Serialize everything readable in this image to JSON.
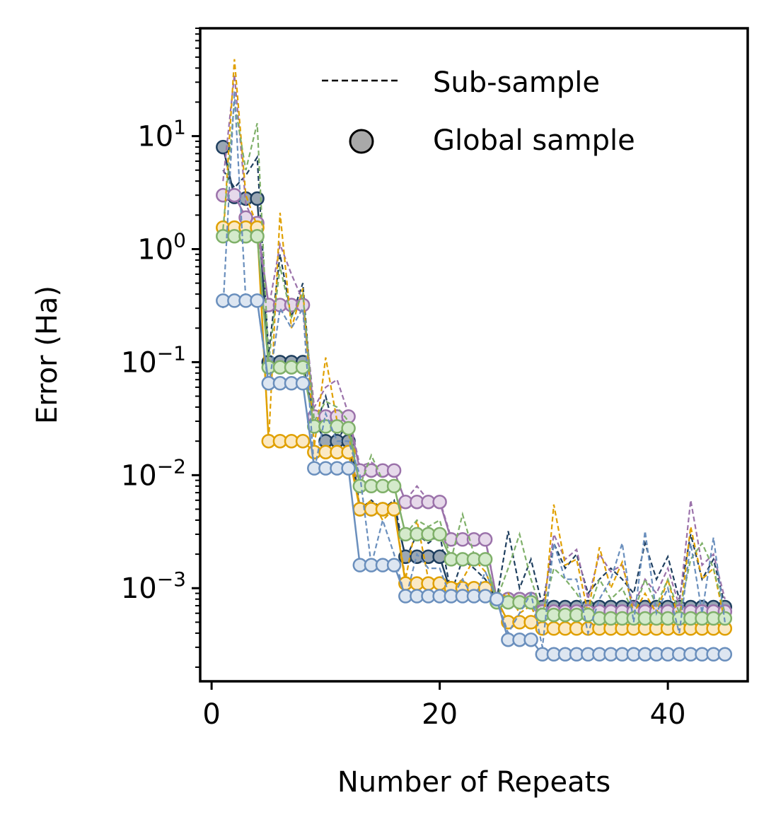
{
  "chart_data": {
    "type": "line",
    "title": "",
    "xlabel": "Number of Repeats",
    "ylabel": "Error (Ha)",
    "yscale": "log",
    "xlim": [
      -1,
      47
    ],
    "ylim": [
      0.00015,
      90
    ],
    "xticks": [
      0,
      20,
      40
    ],
    "xtick_labels": [
      "0",
      "20",
      "40"
    ],
    "yticks": [
      0.001,
      0.01,
      0.1,
      1,
      10
    ],
    "ytick_labels": [
      {
        "base": "10",
        "exp": "−3"
      },
      {
        "base": "10",
        "exp": "−2"
      },
      {
        "base": "10",
        "exp": "−1"
      },
      {
        "base": "10",
        "exp": "0"
      },
      {
        "base": "10",
        "exp": "1"
      }
    ],
    "legend": {
      "position": "top-right",
      "entries": [
        {
          "label": "Sub-sample",
          "style": "dashed-line"
        },
        {
          "label": "Global sample",
          "style": "circle-marker"
        }
      ]
    },
    "x": [
      1,
      2,
      3,
      4,
      5,
      6,
      7,
      8,
      9,
      10,
      11,
      12,
      13,
      14,
      15,
      16,
      17,
      18,
      19,
      20,
      21,
      22,
      23,
      24,
      25,
      26,
      27,
      28,
      29,
      30,
      31,
      32,
      33,
      34,
      35,
      36,
      37,
      38,
      39,
      40,
      41,
      42,
      43,
      44,
      45
    ],
    "series": [
      {
        "name": "navy",
        "line_color": "#1f3f5f",
        "marker_fill": "#9aa7b4",
        "global": [
          8.0,
          2.9,
          2.8,
          2.8,
          0.1,
          0.1,
          0.1,
          0.1,
          0.03,
          0.02,
          0.02,
          0.02,
          0.005,
          0.005,
          0.005,
          0.005,
          0.0019,
          0.0019,
          0.0019,
          0.0019,
          0.0009,
          0.0009,
          0.0009,
          0.0009,
          0.0008,
          0.0008,
          0.0008,
          0.0008,
          0.00068,
          0.00068,
          0.00068,
          0.00068,
          0.00068,
          0.00068,
          0.00068,
          0.00068,
          0.00068,
          0.00068,
          0.00068,
          0.00068,
          0.00068,
          0.00068,
          0.00068,
          0.00068,
          0.00068
        ],
        "sub": [
          5.0,
          3.5,
          4.5,
          6.5,
          0.12,
          0.9,
          0.25,
          0.5,
          0.025,
          0.05,
          0.02,
          0.03,
          0.005,
          0.006,
          0.005,
          0.006,
          0.0018,
          0.003,
          0.0025,
          0.003,
          0.0009,
          0.0018,
          0.0015,
          0.0012,
          0.0008,
          0.0032,
          0.001,
          0.0018,
          0.0007,
          0.0025,
          0.0015,
          0.002,
          0.0009,
          0.0012,
          0.0015,
          0.0012,
          0.0009,
          0.0025,
          0.0012,
          0.0019,
          0.0008,
          0.003,
          0.0012,
          0.0018,
          0.0007
        ]
      },
      {
        "name": "purple",
        "line_color": "#9b72aa",
        "marker_fill": "#e6d9ea",
        "global": [
          3.0,
          3.0,
          1.9,
          1.7,
          0.32,
          0.32,
          0.32,
          0.32,
          0.033,
          0.033,
          0.033,
          0.033,
          0.011,
          0.011,
          0.011,
          0.011,
          0.0058,
          0.0058,
          0.0058,
          0.0058,
          0.0027,
          0.0027,
          0.0027,
          0.0027,
          0.0008,
          0.0008,
          0.0008,
          0.0008,
          0.00062,
          0.00062,
          0.00062,
          0.00062,
          0.00062,
          0.00062,
          0.00062,
          0.00062,
          0.00062,
          0.00062,
          0.00062,
          0.00062,
          0.00062,
          0.00062,
          0.00062,
          0.00062,
          0.00062
        ],
        "sub": [
          4.0,
          35.0,
          2.5,
          1.5,
          0.3,
          1.1,
          0.6,
          0.35,
          0.04,
          0.06,
          0.07,
          0.035,
          0.012,
          0.013,
          0.011,
          0.01,
          0.006,
          0.008,
          0.006,
          0.006,
          0.0028,
          0.003,
          0.0028,
          0.0028,
          0.0008,
          0.0009,
          0.0007,
          0.0009,
          0.0006,
          0.003,
          0.0018,
          0.0022,
          0.0008,
          0.002,
          0.0014,
          0.0016,
          0.0007,
          0.0012,
          0.0009,
          0.0015,
          0.0007,
          0.006,
          0.0016,
          0.002,
          0.0008
        ]
      },
      {
        "name": "orange",
        "line_color": "#e0a000",
        "marker_fill": "#fbe9c4",
        "global": [
          1.55,
          1.55,
          1.55,
          1.55,
          0.02,
          0.02,
          0.02,
          0.02,
          0.016,
          0.016,
          0.016,
          0.016,
          0.005,
          0.005,
          0.005,
          0.005,
          0.0011,
          0.0011,
          0.0011,
          0.0011,
          0.001,
          0.001,
          0.001,
          0.001,
          0.0008,
          0.0005,
          0.0005,
          0.0005,
          0.00044,
          0.00044,
          0.00044,
          0.00044,
          0.00044,
          0.00044,
          0.00044,
          0.00044,
          0.00044,
          0.00044,
          0.00044,
          0.00044,
          0.00044,
          0.00044,
          0.00044,
          0.00044,
          0.00044
        ],
        "sub": [
          1.2,
          48.0,
          3.0,
          1.6,
          0.02,
          2.1,
          0.2,
          0.45,
          0.018,
          0.11,
          0.03,
          0.025,
          0.005,
          0.006,
          0.004,
          0.005,
          0.0012,
          0.004,
          0.0012,
          0.0012,
          0.001,
          0.0012,
          0.0018,
          0.0014,
          0.0008,
          0.0009,
          0.0006,
          0.0007,
          0.0004,
          0.0055,
          0.0016,
          0.0018,
          0.0006,
          0.0023,
          0.001,
          0.0017,
          0.0006,
          0.0009,
          0.0006,
          0.0012,
          0.0005,
          0.0035,
          0.0012,
          0.0015,
          0.0005
        ]
      },
      {
        "name": "green",
        "line_color": "#7fb069",
        "marker_fill": "#d4eacb",
        "global": [
          1.3,
          1.3,
          1.3,
          1.3,
          0.09,
          0.09,
          0.09,
          0.09,
          0.027,
          0.027,
          0.027,
          0.026,
          0.008,
          0.008,
          0.008,
          0.008,
          0.003,
          0.003,
          0.003,
          0.003,
          0.0018,
          0.0018,
          0.0018,
          0.0018,
          0.00075,
          0.00075,
          0.00075,
          0.00075,
          0.00058,
          0.00058,
          0.00058,
          0.00058,
          0.00058,
          0.00054,
          0.00054,
          0.00054,
          0.00054,
          0.00054,
          0.00054,
          0.00054,
          0.00054,
          0.00054,
          0.00054,
          0.00054,
          0.00054
        ],
        "sub": [
          1.5,
          20.0,
          5.0,
          13.0,
          0.1,
          0.7,
          0.25,
          0.4,
          0.03,
          0.045,
          0.04,
          0.03,
          0.008,
          0.015,
          0.009,
          0.008,
          0.003,
          0.004,
          0.0035,
          0.004,
          0.0018,
          0.0045,
          0.002,
          0.0018,
          0.0008,
          0.0015,
          0.003,
          0.0012,
          0.0006,
          0.0015,
          0.0012,
          0.0009,
          0.0006,
          0.0012,
          0.0008,
          0.001,
          0.0006,
          0.0012,
          0.0007,
          0.0012,
          0.0006,
          0.0018,
          0.0025,
          0.0015,
          0.0006
        ]
      },
      {
        "name": "blue",
        "line_color": "#6a8fbd",
        "marker_fill": "#dde6f1",
        "global": [
          0.35,
          0.35,
          0.35,
          0.35,
          0.065,
          0.065,
          0.065,
          0.065,
          0.0115,
          0.0115,
          0.0115,
          0.0115,
          0.0016,
          0.0016,
          0.0016,
          0.0016,
          0.00085,
          0.00085,
          0.00085,
          0.00085,
          0.00085,
          0.00085,
          0.00085,
          0.00085,
          0.0008,
          0.00035,
          0.00035,
          0.00035,
          0.00026,
          0.00026,
          0.00026,
          0.00026,
          0.00026,
          0.00026,
          0.00026,
          0.00026,
          0.00026,
          0.00026,
          0.00026,
          0.00026,
          0.00026,
          0.00026,
          0.00026,
          0.00026,
          0.00026
        ],
        "sub": [
          0.3,
          25.0,
          0.35,
          0.35,
          0.06,
          0.3,
          0.2,
          0.3,
          0.011,
          0.035,
          0.02,
          0.02,
          0.01,
          0.0016,
          0.004,
          0.002,
          0.0008,
          0.002,
          0.0015,
          0.0015,
          0.0008,
          0.0012,
          0.0008,
          0.0014,
          0.0008,
          0.0004,
          0.0006,
          0.0009,
          0.0003,
          0.0025,
          0.0012,
          0.0012,
          0.0004,
          0.0008,
          0.0012,
          0.0025,
          0.0005,
          0.0032,
          0.0006,
          0.001,
          0.0004,
          0.0025,
          0.0006,
          0.0028,
          0.0005
        ]
      }
    ]
  }
}
